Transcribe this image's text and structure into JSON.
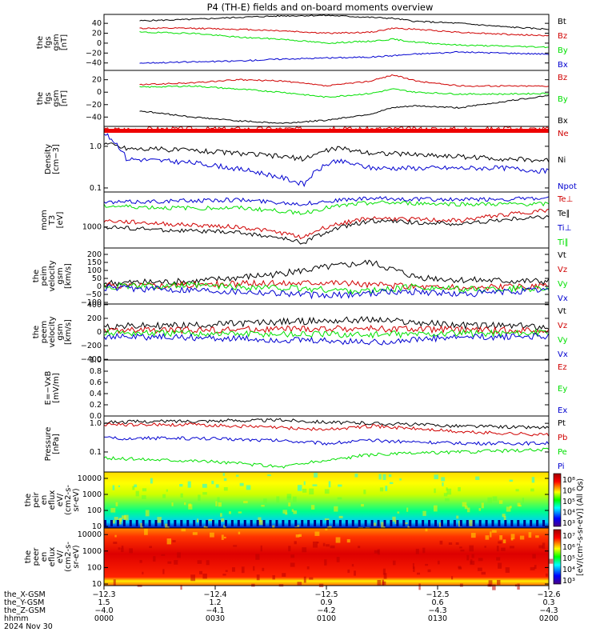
{
  "title": "P4 (TH-E) fields and on-board moments overview",
  "colors": {
    "black": "#000000",
    "red": "#d00000",
    "green": "#00e000",
    "blue": "#0000d0"
  },
  "chart_data": [
    {
      "type": "line",
      "panel": "fgs_gsm",
      "ylabel": [
        "the",
        "fgs",
        "gsm",
        "[nT]"
      ],
      "ylim": [
        -55,
        58
      ],
      "yticks": [
        "40",
        "20",
        "0",
        "−20",
        "−40"
      ],
      "ytick_values": [
        40,
        20,
        0,
        -20,
        -40
      ],
      "series": [
        {
          "name": "Bt",
          "color": "black",
          "x": [
            0.08,
            0.2,
            0.3,
            0.4,
            0.5,
            0.6,
            0.65,
            0.7,
            0.8,
            0.9,
            1.0
          ],
          "y": [
            45,
            48,
            52,
            55,
            56,
            52,
            50,
            44,
            40,
            33,
            28
          ]
        },
        {
          "name": "Bz",
          "color": "red",
          "x": [
            0.08,
            0.2,
            0.3,
            0.4,
            0.5,
            0.6,
            0.65,
            0.7,
            0.8,
            0.9,
            1.0
          ],
          "y": [
            30,
            30,
            28,
            25,
            20,
            22,
            30,
            28,
            22,
            18,
            15
          ]
        },
        {
          "name": "By",
          "color": "green",
          "x": [
            0.08,
            0.2,
            0.3,
            0.4,
            0.5,
            0.6,
            0.65,
            0.7,
            0.8,
            0.9,
            1.0
          ],
          "y": [
            22,
            20,
            12,
            8,
            0,
            4,
            8,
            2,
            -4,
            -6,
            -8
          ]
        },
        {
          "name": "Bx",
          "color": "blue",
          "x": [
            0.08,
            0.2,
            0.3,
            0.4,
            0.5,
            0.6,
            0.65,
            0.7,
            0.8,
            0.9,
            1.0
          ],
          "y": [
            -40,
            -38,
            -36,
            -32,
            -30,
            -28,
            -25,
            -22,
            -18,
            -20,
            -22
          ]
        }
      ]
    },
    {
      "type": "line",
      "panel": "fgs_gsm_alt",
      "ylabel": [
        "the",
        "fgs",
        "gsm",
        "[nT]"
      ],
      "ylim": [
        -55,
        35
      ],
      "yticks": [
        "20",
        "0",
        "−20",
        "−40"
      ],
      "ytick_values": [
        20,
        0,
        -20,
        -40
      ],
      "series": [
        {
          "name": "Bz",
          "color": "red",
          "x": [
            0.08,
            0.2,
            0.3,
            0.4,
            0.5,
            0.6,
            0.65,
            0.7,
            0.8,
            0.9,
            1.0
          ],
          "y": [
            12,
            15,
            20,
            18,
            10,
            18,
            28,
            18,
            10,
            10,
            10
          ]
        },
        {
          "name": "By",
          "color": "green",
          "x": [
            0.08,
            0.2,
            0.3,
            0.4,
            0.5,
            0.6,
            0.65,
            0.7,
            0.8,
            0.9,
            1.0
          ],
          "y": [
            8,
            10,
            5,
            0,
            -8,
            -2,
            5,
            0,
            -3,
            -3,
            -2
          ]
        },
        {
          "name": "Bx",
          "color": "black",
          "x": [
            0.08,
            0.2,
            0.3,
            0.4,
            0.5,
            0.6,
            0.65,
            0.7,
            0.8,
            0.9,
            1.0
          ],
          "y": [
            -30,
            -40,
            -46,
            -50,
            -45,
            -35,
            -25,
            -22,
            -25,
            -15,
            -5
          ]
        }
      ]
    },
    {
      "type": "line",
      "panel": "density",
      "yscale": "log",
      "ylabel": [
        "Density",
        "[cm−3]"
      ],
      "ylim": [
        0.08,
        3.0
      ],
      "yticks": [
        "1.0",
        "0.1"
      ],
      "ytick_values": [
        1.0,
        0.1
      ],
      "series": [
        {
          "name": "Ne",
          "color": "red",
          "x": [
            0,
            0.1,
            0.3,
            0.5,
            0.7,
            0.9,
            1.0
          ],
          "y": [
            2.5,
            2.6,
            2.6,
            2.6,
            2.6,
            2.6,
            2.6
          ]
        },
        {
          "name": "Ni",
          "color": "black",
          "x": [
            0,
            0.05,
            0.2,
            0.45,
            0.52,
            0.6,
            0.75,
            0.9,
            1.0
          ],
          "y": [
            1.2,
            0.9,
            0.8,
            0.5,
            0.9,
            0.7,
            0.6,
            0.5,
            0.45
          ]
        },
        {
          "name": "Npot",
          "color": "blue",
          "x": [
            0,
            0.05,
            0.2,
            0.45,
            0.52,
            0.6,
            0.75,
            0.9,
            1.0
          ],
          "y": [
            2.0,
            0.5,
            0.4,
            0.12,
            0.45,
            0.3,
            0.3,
            0.3,
            0.25
          ]
        }
      ]
    },
    {
      "type": "line",
      "panel": "temperature",
      "yscale": "log",
      "ylabel": [
        "mom",
        "T3",
        "[eV]"
      ],
      "ylim": [
        250,
        10000
      ],
      "yticks": [
        "1000"
      ],
      "ytick_values": [
        1000
      ],
      "series": [
        {
          "name": "Te⊥",
          "color": "red",
          "x": [
            0,
            0.15,
            0.3,
            0.45,
            0.5,
            0.6,
            0.8,
            1.0
          ],
          "y": [
            1500,
            1200,
            1000,
            500,
            1000,
            1800,
            1500,
            3000
          ]
        },
        {
          "name": "Te∥",
          "color": "black",
          "x": [
            0,
            0.15,
            0.3,
            0.45,
            0.5,
            0.6,
            0.8,
            1.0
          ],
          "y": [
            1000,
            800,
            700,
            350,
            700,
            1500,
            1200,
            2000
          ]
        },
        {
          "name": "Ti⊥",
          "color": "blue",
          "x": [
            0,
            0.15,
            0.3,
            0.45,
            0.5,
            0.6,
            0.8,
            1.0
          ],
          "y": [
            5000,
            5500,
            6000,
            4500,
            5500,
            6500,
            6000,
            6500
          ]
        },
        {
          "name": "Ti∥",
          "color": "green",
          "x": [
            0,
            0.15,
            0.3,
            0.45,
            0.5,
            0.6,
            0.8,
            1.0
          ],
          "y": [
            4000,
            3500,
            3500,
            2500,
            3500,
            5000,
            4500,
            4500
          ]
        }
      ]
    },
    {
      "type": "line",
      "panel": "peim_velocity",
      "ylabel": [
        "the",
        "peim",
        "velocity",
        "gsm",
        "[km/s]"
      ],
      "ylim": [
        -110,
        240
      ],
      "yticks": [
        "200",
        "150",
        "100",
        "50",
        "0",
        "−50",
        "−100"
      ],
      "ytick_values": [
        200,
        150,
        100,
        50,
        0,
        -50,
        -100
      ],
      "series": [
        {
          "name": "Vt",
          "color": "black",
          "x": [
            0,
            0.2,
            0.4,
            0.5,
            0.6,
            0.7,
            0.8,
            1.0
          ],
          "y": [
            20,
            30,
            80,
            120,
            150,
            60,
            40,
            30
          ]
        },
        {
          "name": "Vz",
          "color": "red",
          "x": [
            0,
            0.2,
            0.4,
            0.5,
            0.6,
            0.7,
            0.8,
            1.0
          ],
          "y": [
            5,
            10,
            20,
            30,
            10,
            0,
            -10,
            0
          ]
        },
        {
          "name": "Vy",
          "color": "green",
          "x": [
            0,
            0.2,
            0.4,
            0.5,
            0.6,
            0.7,
            0.8,
            1.0
          ],
          "y": [
            0,
            5,
            -10,
            -20,
            -30,
            0,
            -20,
            -10
          ]
        },
        {
          "name": "Vx",
          "color": "blue",
          "x": [
            0,
            0.2,
            0.4,
            0.5,
            0.6,
            0.7,
            0.8,
            1.0
          ],
          "y": [
            -10,
            -20,
            -40,
            -60,
            -40,
            -30,
            -50,
            -20
          ]
        }
      ]
    },
    {
      "type": "line",
      "panel": "peem_velocity",
      "ylabel": [
        "the",
        "peem",
        "velocity",
        "gsm",
        "[km/s]"
      ],
      "ylim": [
        -410,
        410
      ],
      "yticks": [
        "400",
        "200",
        "0",
        "−200",
        "−400"
      ],
      "ytick_values": [
        400,
        200,
        0,
        -200,
        -400
      ],
      "series": [
        {
          "name": "Vt",
          "color": "black",
          "x": [
            0,
            0.2,
            0.4,
            0.6,
            0.8,
            1.0
          ],
          "y": [
            80,
            100,
            150,
            180,
            100,
            80
          ]
        },
        {
          "name": "Vz",
          "color": "red",
          "x": [
            0,
            0.2,
            0.4,
            0.6,
            0.8,
            1.0
          ],
          "y": [
            20,
            30,
            40,
            50,
            30,
            20
          ]
        },
        {
          "name": "Vy",
          "color": "green",
          "x": [
            0,
            0.2,
            0.4,
            0.6,
            0.8,
            1.0
          ],
          "y": [
            -10,
            -20,
            -30,
            -40,
            -20,
            -10
          ]
        },
        {
          "name": "Vx",
          "color": "blue",
          "x": [
            0,
            0.2,
            0.4,
            0.6,
            0.8,
            1.0
          ],
          "y": [
            -60,
            -80,
            -120,
            -150,
            -80,
            -60
          ]
        }
      ]
    },
    {
      "type": "line",
      "panel": "e_field",
      "ylabel": [
        "E=−VxB",
        "[mV/m]"
      ],
      "ylim": [
        0,
        1.0
      ],
      "yticks": [
        "1.0",
        "0.8",
        "0.6",
        "0.4",
        "0.2",
        "0.0"
      ],
      "ytick_values": [
        1.0,
        0.8,
        0.6,
        0.4,
        0.2,
        0.0
      ],
      "series": [
        {
          "name": "Ez",
          "color": "red",
          "x": [],
          "y": []
        },
        {
          "name": "Ey",
          "color": "green",
          "x": [],
          "y": []
        },
        {
          "name": "Ex",
          "color": "blue",
          "x": [],
          "y": []
        }
      ]
    },
    {
      "type": "line",
      "panel": "pressure",
      "yscale": "log",
      "ylabel": [
        "Pressure",
        "[nPa]"
      ],
      "ylim": [
        0.02,
        1.8
      ],
      "yticks": [
        "1.0",
        "0.1"
      ],
      "ytick_values": [
        1.0,
        0.1
      ],
      "series": [
        {
          "name": "Pt",
          "color": "black",
          "x": [
            0,
            0.2,
            0.4,
            0.5,
            0.6,
            0.8,
            1.0
          ],
          "y": [
            1.1,
            1.2,
            1.3,
            1.1,
            1.0,
            0.8,
            0.7
          ]
        },
        {
          "name": "Pb",
          "color": "red",
          "x": [
            0,
            0.2,
            0.4,
            0.5,
            0.6,
            0.8,
            1.0
          ],
          "y": [
            0.9,
            0.9,
            0.7,
            0.6,
            0.8,
            0.5,
            0.4
          ]
        },
        {
          "name": "Pe",
          "color": "green",
          "x": [
            0,
            0.2,
            0.4,
            0.5,
            0.6,
            0.8,
            1.0
          ],
          "y": [
            0.06,
            0.05,
            0.03,
            0.05,
            0.08,
            0.1,
            0.12
          ]
        },
        {
          "name": "Pi",
          "color": "blue",
          "x": [
            0,
            0.2,
            0.4,
            0.5,
            0.6,
            0.8,
            1.0
          ],
          "y": [
            0.3,
            0.3,
            0.25,
            0.2,
            0.25,
            0.2,
            0.2
          ]
        }
      ]
    },
    {
      "type": "heatmap",
      "panel": "peir_energy_flux",
      "yscale": "log",
      "ylabel": [
        "the",
        "peir",
        "en",
        "eflux",
        "eV/",
        "(cm2-s-",
        "sr-eV)"
      ],
      "ylim": [
        8,
        25000
      ],
      "yticks": [
        "10000",
        "1000",
        "100",
        "10"
      ],
      "ytick_values": [
        10000,
        1000,
        100,
        10
      ],
      "colorbar_ticks": [
        "10⁸",
        "10⁶",
        "10⁵",
        "10⁴",
        "10³"
      ],
      "colorbar_label": "[eV/(cm²-s-sr-eV)] (All Qs)"
    },
    {
      "type": "heatmap",
      "panel": "peer_energy_flux",
      "yscale": "log",
      "ylabel": [
        "the",
        "peer",
        "en",
        "eflux",
        "eV/",
        "(cm2-s-",
        "sr-eV)"
      ],
      "ylim": [
        8,
        25000
      ],
      "yticks": [
        "10000",
        "1000",
        "100",
        "10"
      ],
      "ytick_values": [
        10000,
        1000,
        100,
        10
      ],
      "colorbar_ticks": [
        "10⁷",
        "10⁶",
        "10⁵",
        "10⁴",
        "10³"
      ],
      "colorbar_label": "[eV/(cm²-s-sr-eV)] (All Qs)"
    }
  ],
  "xaxis": {
    "rows": [
      {
        "label": "the_X-GSM",
        "values": [
          "−12.3",
          "−12.4",
          "−12.5",
          "−12.5",
          "−12.6"
        ]
      },
      {
        "label": "the_Y-GSM",
        "values": [
          "1.5",
          "1.2",
          "0.9",
          "0.6",
          "0.3"
        ]
      },
      {
        "label": "the_Z-GSM",
        "values": [
          "−4.0",
          "−4.1",
          "−4.2",
          "−4.3",
          "−4.3"
        ]
      },
      {
        "label": "hhmm",
        "values": [
          "0000",
          "0030",
          "0100",
          "0130",
          "0200"
        ]
      }
    ],
    "date": "2024 Nov 30"
  }
}
